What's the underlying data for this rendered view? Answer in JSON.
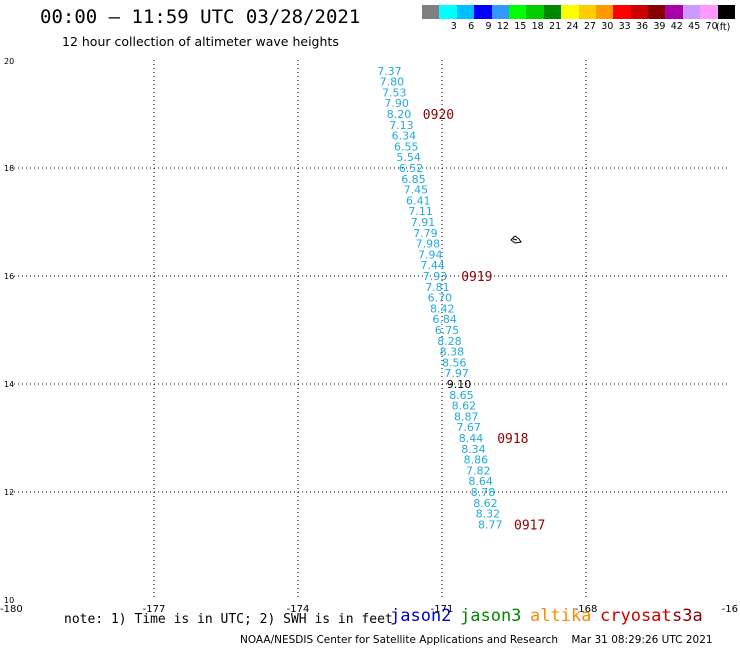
{
  "header": {
    "title": "00:00 – 11:59 UTC 03/28/2021",
    "subtitle": "12 hour collection of altimeter wave heights"
  },
  "legend": {
    "unit": "(ft)",
    "labels": [
      "",
      "3",
      "6",
      "9",
      "12",
      "15",
      "18",
      "21",
      "24",
      "27",
      "30",
      "33",
      "36",
      "39",
      "42",
      "45",
      "70"
    ],
    "colors": [
      "#808080",
      "#00ffff",
      "#00bfff",
      "#0000ff",
      "#3399ff",
      "#00ff00",
      "#00cc00",
      "#008800",
      "#ffff00",
      "#ffcc00",
      "#ff9900",
      "#ff0000",
      "#cc0000",
      "#880000",
      "#aa00aa",
      "#cc99ff",
      "#ff99ff",
      "#000000"
    ]
  },
  "map": {
    "lon_range": [
      -180,
      -165
    ],
    "lat_range": [
      10,
      20
    ],
    "x_ticks": [
      "-180",
      "-177",
      "-174",
      "-171",
      "-168",
      "-16"
    ],
    "y_ticks": [
      "20",
      "18",
      "16",
      "14",
      "12",
      "10"
    ],
    "grid": "dotted",
    "colors": {
      "wave_text": "#22aadd",
      "time_label": "#8b0000",
      "highlight": "#000000"
    },
    "island_icon": "island-outline-icon",
    "wave_heights": [
      {
        "lat": 19.8,
        "lon": -172.35,
        "value": "7.37"
      },
      {
        "lat": 19.6,
        "lon": -172.3,
        "value": "7.80"
      },
      {
        "lat": 19.4,
        "lon": -172.25,
        "value": "7.53"
      },
      {
        "lat": 19.2,
        "lon": -172.2,
        "value": "7.90"
      },
      {
        "lat": 19.0,
        "lon": -172.15,
        "value": "8.20"
      },
      {
        "lat": 18.8,
        "lon": -172.1,
        "value": "7.13"
      },
      {
        "lat": 18.6,
        "lon": -172.05,
        "value": "6.34"
      },
      {
        "lat": 18.4,
        "lon": -172.0,
        "value": "6.55"
      },
      {
        "lat": 18.2,
        "lon": -171.95,
        "value": "5.54"
      },
      {
        "lat": 18.0,
        "lon": -171.9,
        "value": "6.52"
      },
      {
        "lat": 17.8,
        "lon": -171.85,
        "value": "6.85"
      },
      {
        "lat": 17.6,
        "lon": -171.8,
        "value": "7.45"
      },
      {
        "lat": 17.4,
        "lon": -171.75,
        "value": "6.41"
      },
      {
        "lat": 17.2,
        "lon": -171.7,
        "value": "7.11"
      },
      {
        "lat": 17.0,
        "lon": -171.65,
        "value": "7.91"
      },
      {
        "lat": 16.8,
        "lon": -171.6,
        "value": "7.79"
      },
      {
        "lat": 16.6,
        "lon": -171.55,
        "value": "7.98"
      },
      {
        "lat": 16.4,
        "lon": -171.5,
        "value": "7.94"
      },
      {
        "lat": 16.2,
        "lon": -171.45,
        "value": "7.44"
      },
      {
        "lat": 16.0,
        "lon": -171.4,
        "value": "7.93"
      },
      {
        "lat": 15.8,
        "lon": -171.35,
        "value": "7.81"
      },
      {
        "lat": 15.6,
        "lon": -171.3,
        "value": "6.70"
      },
      {
        "lat": 15.4,
        "lon": -171.25,
        "value": "8.42"
      },
      {
        "lat": 15.2,
        "lon": -171.2,
        "value": "6.84"
      },
      {
        "lat": 15.0,
        "lon": -171.15,
        "value": "6.75"
      },
      {
        "lat": 14.8,
        "lon": -171.1,
        "value": "8.28"
      },
      {
        "lat": 14.6,
        "lon": -171.05,
        "value": "8.38"
      },
      {
        "lat": 14.4,
        "lon": -171.0,
        "value": "8.56"
      },
      {
        "lat": 14.2,
        "lon": -170.95,
        "value": "7.97"
      },
      {
        "lat": 14.0,
        "lon": -170.9,
        "value": "9.10",
        "highlight": true
      },
      {
        "lat": 13.8,
        "lon": -170.85,
        "value": "8.65"
      },
      {
        "lat": 13.6,
        "lon": -170.8,
        "value": "8.62"
      },
      {
        "lat": 13.4,
        "lon": -170.75,
        "value": "8.87"
      },
      {
        "lat": 13.2,
        "lon": -170.7,
        "value": "7.67"
      },
      {
        "lat": 13.0,
        "lon": -170.65,
        "value": "8.44"
      },
      {
        "lat": 12.8,
        "lon": -170.6,
        "value": "8.34"
      },
      {
        "lat": 12.6,
        "lon": -170.55,
        "value": "8.86"
      },
      {
        "lat": 12.4,
        "lon": -170.5,
        "value": "7.82"
      },
      {
        "lat": 12.2,
        "lon": -170.45,
        "value": "8.64"
      },
      {
        "lat": 12.0,
        "lon": -170.4,
        "value": "8.78"
      },
      {
        "lat": 11.8,
        "lon": -170.35,
        "value": "8.62"
      },
      {
        "lat": 11.6,
        "lon": -170.3,
        "value": "8.32"
      },
      {
        "lat": 11.4,
        "lon": -170.25,
        "value": "8.77"
      }
    ],
    "time_labels": [
      {
        "text": "0920",
        "lat": 19.0,
        "lon": -171.4
      },
      {
        "text": "0919",
        "lat": 16.0,
        "lon": -170.6
      },
      {
        "text": "0918",
        "lat": 13.0,
        "lon": -169.85
      },
      {
        "text": "0917",
        "lat": 11.4,
        "lon": -169.5
      }
    ]
  },
  "footer": {
    "note": "note: 1) Time is in UTC; 2) SWH is in feet",
    "satellites": [
      {
        "name": "jason2",
        "color": "#0000cc"
      },
      {
        "name": "jason3",
        "color": "#008800"
      },
      {
        "name": "altika",
        "color": "#ff8800"
      },
      {
        "name": "cryosat",
        "color": "#cc0000"
      },
      {
        "name": "s3a",
        "color": "#8b0000"
      }
    ],
    "credit": "NOAA/NESDIS Center for Satellite Applications and Research    Mar 31 08:29:26 UTC 2021"
  }
}
